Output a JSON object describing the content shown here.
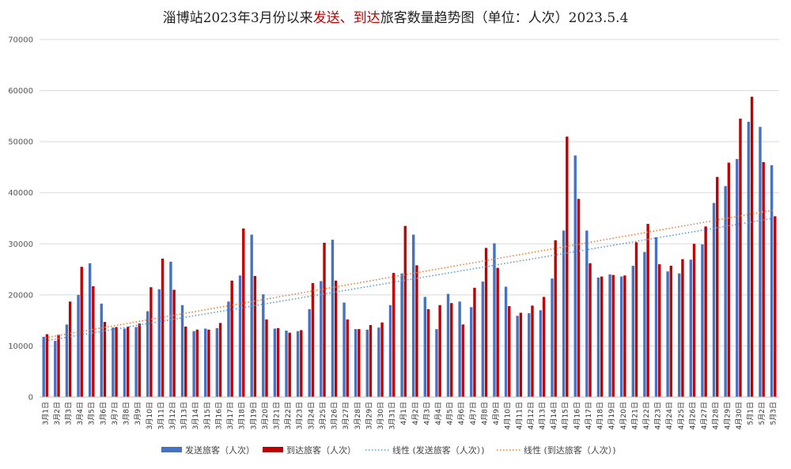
{
  "title": {
    "part1": "淄博站2023年3月份以来",
    "part2": "发送、到达",
    "part3": "旅客数量趋势图（单位：人次）2023.5.4"
  },
  "colors": {
    "sent": "#4472c4",
    "arrived": "#c00000",
    "sent_trend": "#5b9bd5",
    "arrived_trend": "#ed7d31",
    "grid": "#d9d9d9",
    "title_highlight": "#c00000"
  },
  "chart_data": {
    "type": "bar",
    "title": "淄博站2023年3月份以来发送、到达旅客数量趋势图（单位：人次）2023.5.4",
    "categories": [
      "3月1日",
      "3月2日",
      "3月3日",
      "3月4日",
      "3月5日",
      "3月6日",
      "3月7日",
      "3月8日",
      "3月9日",
      "3月10日",
      "3月11日",
      "3月12日",
      "3月13日",
      "3月14日",
      "3月15日",
      "3月16日",
      "3月17日",
      "3月18日",
      "3月19日",
      "3月20日",
      "3月21日",
      "3月22日",
      "3月23日",
      "3月24日",
      "3月25日",
      "3月26日",
      "3月27日",
      "3月28日",
      "3月29日",
      "3月30日",
      "3月31日",
      "4月1日",
      "4月2日",
      "4月3日",
      "4月4日",
      "4月5日",
      "4月6日",
      "4月7日",
      "4月8日",
      "4月9日",
      "4月10日",
      "4月11日",
      "4月12日",
      "4月13日",
      "4月14日",
      "4月15日",
      "4月16日",
      "4月17日",
      "4月18日",
      "4月19日",
      "4月20日",
      "4月21日",
      "4月22日",
      "4月23日",
      "4月24日",
      "4月25日",
      "4月26日",
      "4月27日",
      "4月28日",
      "4月29日",
      "4月30日",
      "5月1日",
      "5月2日",
      "5月3日"
    ],
    "series": [
      {
        "name": "发送旅客（人次）",
        "values": [
          11800,
          11000,
          14200,
          20000,
          26200,
          18300,
          13600,
          13400,
          13700,
          16800,
          21100,
          26500,
          18000,
          12900,
          13400,
          13500,
          18700,
          23800,
          31800,
          20100,
          13400,
          13000,
          12900,
          17200,
          22700,
          30800,
          18500,
          13300,
          13200,
          13600,
          18000,
          24200,
          31800,
          19600,
          13300,
          20200,
          18700,
          17600,
          22600,
          30100,
          21600,
          15900,
          16400,
          17000,
          23200,
          32600,
          47300,
          32600,
          23400,
          24000,
          23600,
          25700,
          28400,
          31300,
          24600,
          24200,
          26900,
          29900,
          38000,
          41300,
          46600,
          53900,
          52900,
          45400
        ]
      },
      {
        "name": "到达旅客（人次）",
        "values": [
          12300,
          12200,
          18700,
          25500,
          21700,
          14700,
          13700,
          13800,
          14400,
          21500,
          27100,
          21000,
          13800,
          13200,
          13200,
          14500,
          22800,
          33000,
          23700,
          15200,
          13500,
          12600,
          13100,
          22300,
          30200,
          22800,
          15200,
          13300,
          14100,
          14600,
          24300,
          33500,
          25800,
          17200,
          18000,
          18400,
          14200,
          21400,
          29200,
          25300,
          17800,
          16500,
          17900,
          19600,
          30700,
          51000,
          38800,
          26200,
          23600,
          23900,
          23800,
          30300,
          33900,
          26000,
          25700,
          27000,
          30000,
          33400,
          43100,
          45900,
          54500,
          58800,
          46000,
          35400
        ]
      }
    ],
    "trendlines": [
      {
        "name": "线性 (发送旅客（人次）)",
        "start": 11000,
        "end": 35000
      },
      {
        "name": "线性 (到达旅客（人次）)",
        "start": 11600,
        "end": 36600
      }
    ],
    "xlabel": "",
    "ylabel": "",
    "ylim": [
      0,
      70000
    ],
    "yticks": [
      0,
      10000,
      20000,
      30000,
      40000,
      50000,
      60000,
      70000
    ],
    "grid": true,
    "legend_position": "bottom"
  }
}
